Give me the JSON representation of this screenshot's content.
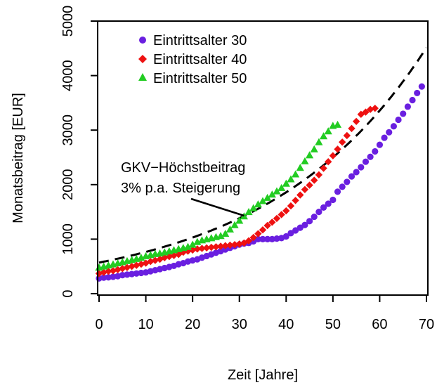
{
  "chart_data": {
    "type": "scatter",
    "title": "",
    "xlabel": "Zeit [Jahre]",
    "ylabel": "Monatsbeitrag [EUR]",
    "xlim": [
      0,
      70
    ],
    "ylim": [
      0,
      5000
    ],
    "xticks": [
      0,
      10,
      20,
      30,
      40,
      50,
      60,
      70
    ],
    "yticks": [
      0,
      1000,
      2000,
      3000,
      4000,
      5000
    ],
    "grid": false,
    "legend_position": "top-left",
    "series": [
      {
        "name": "Eintrittsalter 30",
        "marker": "circle",
        "color": "#6a1fe0",
        "x": [
          0,
          1,
          2,
          3,
          4,
          5,
          6,
          7,
          8,
          9,
          10,
          11,
          12,
          13,
          14,
          15,
          16,
          17,
          18,
          19,
          20,
          21,
          22,
          23,
          24,
          25,
          26,
          27,
          28,
          29,
          30,
          31,
          32,
          33,
          34,
          35,
          36,
          37,
          38,
          39,
          40,
          41,
          42,
          43,
          44,
          45,
          46,
          47,
          48,
          49,
          50,
          51,
          52,
          53,
          54,
          55,
          56,
          57,
          58,
          59,
          60,
          61,
          62,
          63,
          64,
          65,
          66,
          67,
          68,
          69
        ],
        "y": [
          280,
          294,
          300,
          310,
          320,
          340,
          350,
          360,
          370,
          380,
          390,
          410,
          430,
          450,
          470,
          490,
          510,
          540,
          560,
          590,
          610,
          630,
          660,
          690,
          720,
          750,
          780,
          810,
          840,
          870,
          900,
          920,
          930,
          960,
          1000,
          1000,
          1000,
          1000,
          1010,
          1020,
          1050,
          1110,
          1160,
          1210,
          1260,
          1330,
          1410,
          1500,
          1580,
          1650,
          1720,
          1870,
          1960,
          2050,
          2150,
          2230,
          2320,
          2420,
          2510,
          2610,
          2730,
          2860,
          2960,
          3070,
          3190,
          3300,
          3430,
          3550,
          3680,
          3800
        ]
      },
      {
        "name": "Eintrittsalter 40",
        "marker": "diamond",
        "color": "#ee1111",
        "x": [
          0,
          1,
          2,
          3,
          4,
          5,
          6,
          7,
          8,
          9,
          10,
          11,
          12,
          13,
          14,
          15,
          16,
          17,
          18,
          19,
          20,
          21,
          22,
          23,
          24,
          25,
          26,
          27,
          28,
          29,
          30,
          31,
          32,
          33,
          34,
          35,
          36,
          37,
          38,
          39,
          40,
          41,
          42,
          43,
          44,
          45,
          46,
          47,
          48,
          49,
          50,
          51,
          52,
          53,
          54,
          55,
          56,
          57,
          58,
          59
        ],
        "y": [
          370,
          390,
          410,
          420,
          440,
          460,
          480,
          500,
          520,
          540,
          560,
          590,
          610,
          630,
          660,
          680,
          700,
          720,
          760,
          780,
          800,
          820,
          830,
          840,
          850,
          860,
          870,
          880,
          890,
          900,
          910,
          930,
          970,
          1030,
          1100,
          1170,
          1250,
          1310,
          1380,
          1450,
          1520,
          1610,
          1710,
          1810,
          1910,
          1990,
          2080,
          2180,
          2300,
          2420,
          2530,
          2650,
          2780,
          2900,
          3030,
          3160,
          3290,
          3330,
          3380,
          3400
        ]
      },
      {
        "name": "Eintrittsalter 50",
        "marker": "triangle",
        "color": "#22cc22",
        "x": [
          0,
          1,
          2,
          3,
          4,
          5,
          6,
          7,
          8,
          9,
          10,
          11,
          12,
          13,
          14,
          15,
          16,
          17,
          18,
          19,
          20,
          21,
          22,
          23,
          24,
          25,
          26,
          27,
          28,
          29,
          30,
          31,
          32,
          33,
          34,
          35,
          36,
          37,
          38,
          39,
          40,
          41,
          42,
          43,
          44,
          45,
          46,
          47,
          48,
          49,
          50,
          51
        ],
        "y": [
          480,
          500,
          520,
          540,
          560,
          580,
          600,
          620,
          640,
          660,
          690,
          710,
          730,
          740,
          760,
          780,
          800,
          820,
          840,
          860,
          900,
          950,
          980,
          1000,
          1020,
          1040,
          1060,
          1100,
          1180,
          1260,
          1340,
          1420,
          1500,
          1570,
          1640,
          1700,
          1760,
          1820,
          1880,
          1940,
          2020,
          2100,
          2190,
          2310,
          2430,
          2540,
          2650,
          2780,
          2890,
          2980,
          3080,
          3100
        ]
      }
    ],
    "reference_line": {
      "name": "GKV-Höchstbeitrag 3% p.a. Steigerung",
      "style": "dashed",
      "color": "#000000",
      "base_value": 570,
      "growth_rate": 0.03
    },
    "annotation": {
      "line1": "GKV−Höchstbeitrag",
      "line2": "3% p.a. Steigerung",
      "arrow_to": [
        31,
        1430
      ]
    }
  }
}
